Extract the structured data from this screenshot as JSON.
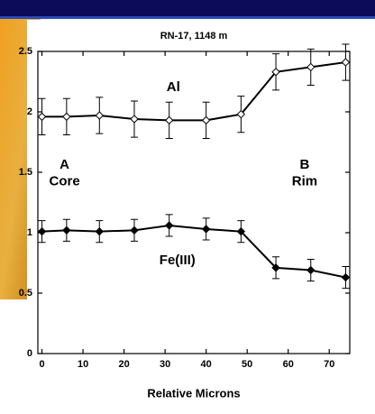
{
  "chart_data": {
    "type": "line",
    "title": "RN-17, 1148 m",
    "x_label": "Relative Microns",
    "x": [
      0,
      6,
      14,
      22.5,
      31,
      40,
      48.5,
      57,
      65.5,
      74
    ],
    "series": [
      {
        "name": "Al",
        "color": "#000000",
        "marker": "open-diamond",
        "values": [
          1.96,
          1.96,
          1.97,
          1.94,
          1.93,
          1.93,
          1.98,
          2.33,
          2.37,
          2.41
        ],
        "errors": [
          0.15,
          0.15,
          0.15,
          0.15,
          0.15,
          0.15,
          0.15,
          0.15,
          0.15,
          0.15
        ]
      },
      {
        "name": "Fe(III)",
        "color": "#000000",
        "marker": "filled-diamond",
        "values": [
          1.01,
          1.02,
          1.01,
          1.02,
          1.06,
          1.03,
          1.01,
          0.71,
          0.69,
          0.63
        ],
        "errors": [
          0.09,
          0.09,
          0.09,
          0.09,
          0.09,
          0.09,
          0.09,
          0.09,
          0.09,
          0.09
        ]
      }
    ],
    "annotations": [
      {
        "text": "A",
        "x": 5.5,
        "y": 1.56
      },
      {
        "text": "Core",
        "x": 5.5,
        "y": 1.42
      },
      {
        "text": "B",
        "x": 64,
        "y": 1.56
      },
      {
        "text": "Rim",
        "x": 64,
        "y": 1.42
      }
    ],
    "series_label_positions": [
      {
        "x": 32,
        "y": 2.2
      },
      {
        "x": 33,
        "y": 0.77
      }
    ],
    "xlim": [
      -1,
      75
    ],
    "ylim": [
      0,
      2.5
    ],
    "xticks": [
      0,
      10,
      20,
      30,
      40,
      50,
      60,
      70
    ],
    "yticks": [
      0,
      0.5,
      1,
      1.5,
      2,
      2.5
    ]
  }
}
